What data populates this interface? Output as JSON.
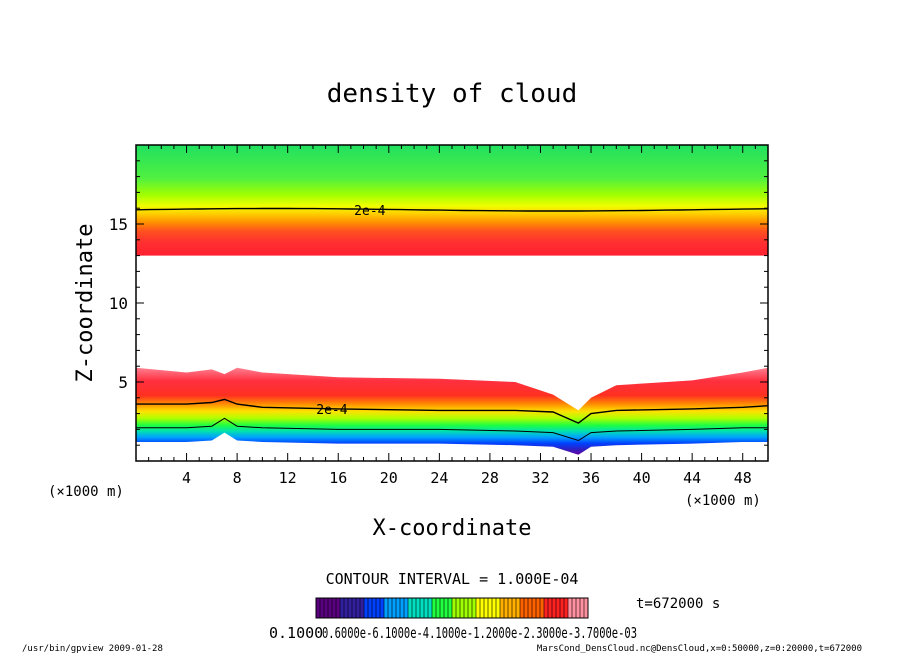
{
  "chart_data": {
    "type": "heatmap",
    "title": "density of cloud",
    "xlabel": "X-coordinate",
    "ylabel": "Z-coordinate",
    "x_unit_label_left": "(×1000 m)",
    "x_unit_label_right": "(×1000 m)",
    "xlim": [
      0,
      50
    ],
    "ylim": [
      0,
      20
    ],
    "x_ticks": [
      4,
      8,
      12,
      16,
      20,
      24,
      28,
      32,
      36,
      40,
      44,
      48
    ],
    "y_ticks": [
      5,
      10,
      15
    ],
    "x_tick_labels": [
      "4",
      "8",
      "12",
      "16",
      "20",
      "24",
      "28",
      "32",
      "36",
      "40",
      "44",
      "48"
    ],
    "y_tick_labels": [
      "5",
      "10",
      "15"
    ],
    "contour_interval_text": "CONTOUR INTERVAL = 1.000E-04",
    "time_label": "t=672000 s",
    "contour_labels": [
      {
        "text": "2e-4",
        "x": 18.5,
        "z": 15.9
      },
      {
        "text": "2e-4",
        "x": 15.5,
        "z": 3.3
      }
    ],
    "colorbar": {
      "min_label": "0.1000",
      "tick_labels_overlapped": "0.6000e-6.1000e-4.1000e-1.2000e-2.3000e-3.7000e-03",
      "colors": [
        "#5a0080",
        "#3020a0",
        "#0040ff",
        "#00a0ff",
        "#00e0c0",
        "#20ff40",
        "#a0ff00",
        "#ffff00",
        "#ffb000",
        "#ff6000",
        "#ff2020",
        "#ff90a0"
      ]
    },
    "upper_layer": {
      "bottom_z": 13.0,
      "peak_z": 14.5,
      "contour_2e4_z": 15.9,
      "top_z": 20
    },
    "lower_layer_profile": {
      "x": [
        0,
        4,
        6,
        7,
        8,
        10,
        16,
        24,
        30,
        33,
        35,
        36,
        38,
        44,
        48,
        50
      ],
      "top_z": [
        5.9,
        5.6,
        5.8,
        5.5,
        5.9,
        5.6,
        5.3,
        5.2,
        5.0,
        4.2,
        3.2,
        4.0,
        4.8,
        5.1,
        5.6,
        5.9
      ],
      "contour_2e4_z": [
        3.6,
        3.6,
        3.7,
        3.9,
        3.6,
        3.4,
        3.3,
        3.2,
        3.2,
        3.1,
        2.4,
        3.0,
        3.2,
        3.3,
        3.4,
        3.5
      ],
      "bottom_z": [
        1.2,
        1.2,
        1.3,
        1.8,
        1.3,
        1.2,
        1.1,
        1.1,
        1.0,
        0.9,
        0.4,
        0.9,
        1.0,
        1.1,
        1.2,
        1.2
      ]
    },
    "grid": false,
    "legend": "colorbar-bottom"
  },
  "footer": {
    "left": "/usr/bin/gpview  2009-01-28",
    "right": "MarsCond_DensCloud.nc@DensCloud,x=0:50000,z=0:20000,t=672000"
  }
}
